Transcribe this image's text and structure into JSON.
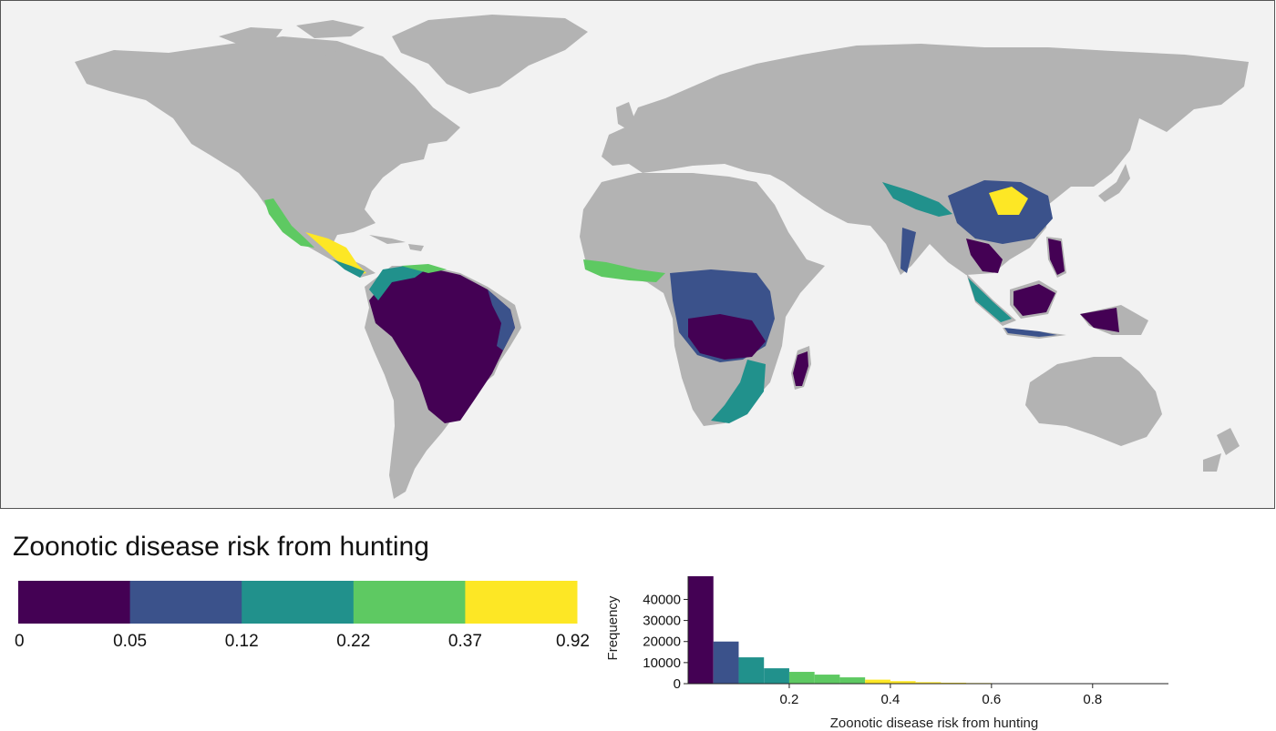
{
  "legend": {
    "title": "Zoonotic disease risk from hunting",
    "breaks": [
      "0",
      "0.05",
      "0.12",
      "0.22",
      "0.37",
      "0.92"
    ],
    "colors": [
      "#440154",
      "#3b528b",
      "#21918c",
      "#5ec962",
      "#fde725"
    ]
  },
  "map": {
    "ocean_color": "#f2f2f2",
    "land_color": "#b3b3b3",
    "border_color": "#555555"
  },
  "chart_data": {
    "type": "bar",
    "xlabel": "Zoonotic disease risk from hunting",
    "ylabel": "Frequency",
    "xlim": [
      0,
      0.95
    ],
    "ylim": [
      0,
      51000
    ],
    "x_ticks": [
      0.2,
      0.4,
      0.6,
      0.8
    ],
    "x_tick_labels": [
      "0.2",
      "0.4",
      "0.6",
      "0.8"
    ],
    "y_ticks": [
      0,
      10000,
      20000,
      30000,
      40000
    ],
    "y_tick_labels": [
      "0",
      "10000",
      "20000",
      "30000",
      "40000"
    ],
    "bins": [
      {
        "x0": 0.0,
        "x1": 0.05,
        "count": 51000,
        "color": "#440154"
      },
      {
        "x0": 0.05,
        "x1": 0.1,
        "count": 20000,
        "color": "#3b528b"
      },
      {
        "x0": 0.1,
        "x1": 0.15,
        "count": 12500,
        "color": "#21918c"
      },
      {
        "x0": 0.15,
        "x1": 0.2,
        "count": 7300,
        "color": "#21918c"
      },
      {
        "x0": 0.2,
        "x1": 0.25,
        "count": 5600,
        "color": "#5ec962"
      },
      {
        "x0": 0.25,
        "x1": 0.3,
        "count": 4300,
        "color": "#5ec962"
      },
      {
        "x0": 0.3,
        "x1": 0.35,
        "count": 3000,
        "color": "#5ec962"
      },
      {
        "x0": 0.35,
        "x1": 0.4,
        "count": 1900,
        "color": "#fde725"
      },
      {
        "x0": 0.4,
        "x1": 0.45,
        "count": 1200,
        "color": "#fde725"
      },
      {
        "x0": 0.45,
        "x1": 0.5,
        "count": 700,
        "color": "#fde725"
      },
      {
        "x0": 0.5,
        "x1": 0.55,
        "count": 450,
        "color": "#fde725"
      },
      {
        "x0": 0.55,
        "x1": 0.6,
        "count": 300,
        "color": "#fde725"
      },
      {
        "x0": 0.6,
        "x1": 0.65,
        "count": 200,
        "color": "#fde725"
      },
      {
        "x0": 0.65,
        "x1": 0.7,
        "count": 150,
        "color": "#fde725"
      },
      {
        "x0": 0.7,
        "x1": 0.75,
        "count": 100,
        "color": "#fde725"
      },
      {
        "x0": 0.75,
        "x1": 0.8,
        "count": 80,
        "color": "#fde725"
      },
      {
        "x0": 0.8,
        "x1": 0.85,
        "count": 60,
        "color": "#fde725"
      },
      {
        "x0": 0.85,
        "x1": 0.9,
        "count": 40,
        "color": "#fde725"
      }
    ]
  }
}
